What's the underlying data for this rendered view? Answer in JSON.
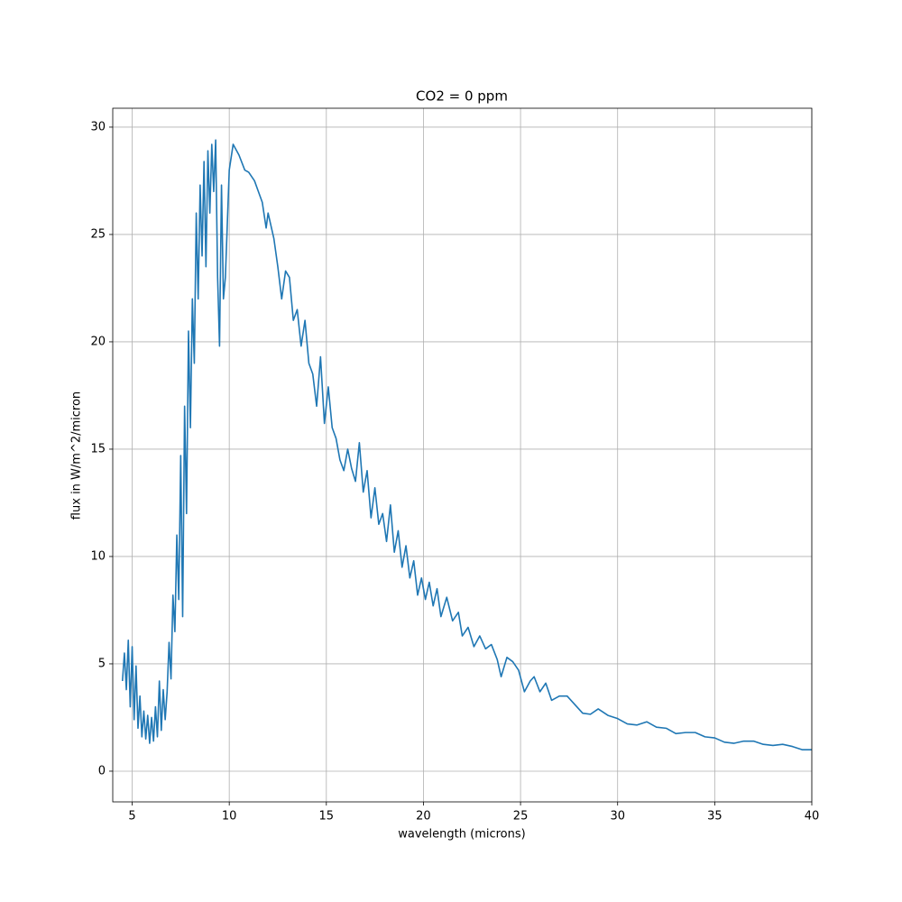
{
  "chart_data": {
    "type": "line",
    "title": "CO2 = 0 ppm",
    "x_label": "wavelength (microns)",
    "y_label": "flux in W/m^2/micron",
    "x": [
      4.5,
      4.6,
      4.7,
      4.8,
      4.9,
      5.0,
      5.1,
      5.2,
      5.3,
      5.4,
      5.5,
      5.6,
      5.7,
      5.8,
      5.9,
      6.0,
      6.1,
      6.2,
      6.3,
      6.4,
      6.5,
      6.6,
      6.7,
      6.8,
      6.9,
      7.0,
      7.1,
      7.2,
      7.3,
      7.4,
      7.5,
      7.6,
      7.7,
      7.8,
      7.9,
      8.0,
      8.1,
      8.2,
      8.3,
      8.4,
      8.5,
      8.6,
      8.7,
      8.8,
      8.9,
      9.0,
      9.1,
      9.2,
      9.3,
      9.4,
      9.5,
      9.6,
      9.7,
      9.8,
      10.0,
      10.2,
      10.5,
      10.8,
      11.0,
      11.3,
      11.5,
      11.7,
      11.9,
      12.0,
      12.3,
      12.5,
      12.7,
      12.9,
      13.1,
      13.3,
      13.5,
      13.7,
      13.9,
      14.1,
      14.3,
      14.5,
      14.7,
      14.9,
      15.1,
      15.3,
      15.5,
      15.7,
      15.9,
      16.1,
      16.3,
      16.5,
      16.7,
      16.9,
      17.1,
      17.3,
      17.5,
      17.7,
      17.9,
      18.1,
      18.3,
      18.5,
      18.7,
      18.9,
      19.1,
      19.3,
      19.5,
      19.7,
      19.9,
      20.1,
      20.3,
      20.5,
      20.7,
      20.9,
      21.2,
      21.5,
      21.8,
      22.0,
      22.3,
      22.6,
      22.9,
      23.2,
      23.5,
      23.8,
      24.0,
      24.3,
      24.6,
      24.9,
      25.2,
      25.5,
      25.7,
      26.0,
      26.3,
      26.6,
      27.0,
      27.4,
      27.8,
      28.2,
      28.6,
      29.0,
      29.5,
      30.0,
      30.5,
      31.0,
      31.5,
      32.0,
      32.5,
      33.0,
      33.5,
      34.0,
      34.5,
      35.0,
      35.5,
      36.0,
      36.5,
      37.0,
      37.5,
      38.0,
      38.5,
      39.0,
      39.5,
      40.0
    ],
    "series": [
      {
        "name": "flux",
        "color": "#1f77b4",
        "values": [
          4.2,
          5.5,
          3.8,
          6.1,
          3.0,
          5.8,
          2.4,
          4.9,
          2.0,
          3.5,
          1.6,
          2.8,
          1.5,
          2.6,
          1.3,
          2.5,
          1.4,
          3.0,
          1.6,
          4.2,
          1.9,
          3.8,
          2.4,
          3.7,
          6.0,
          4.3,
          8.2,
          6.5,
          11.0,
          8.0,
          14.7,
          7.2,
          17.0,
          12.0,
          20.5,
          16.0,
          22.0,
          19.0,
          26.0,
          22.0,
          27.3,
          24.0,
          28.4,
          23.5,
          28.9,
          26.0,
          29.2,
          27.0,
          29.4,
          23.0,
          19.8,
          27.3,
          22.0,
          23.0,
          28.0,
          29.2,
          28.7,
          28.0,
          27.9,
          27.5,
          27.0,
          26.5,
          25.3,
          26.0,
          24.8,
          23.5,
          22.0,
          23.3,
          23.0,
          21.0,
          21.5,
          19.8,
          21.0,
          19.0,
          18.5,
          17.0,
          19.3,
          16.2,
          17.9,
          16.0,
          15.5,
          14.5,
          14.0,
          15.0,
          14.1,
          13.5,
          15.3,
          13.0,
          14.0,
          11.8,
          13.2,
          11.5,
          12.0,
          10.7,
          12.4,
          10.2,
          11.2,
          9.5,
          10.5,
          9.0,
          9.8,
          8.2,
          9.0,
          8.0,
          8.8,
          7.7,
          8.5,
          7.2,
          8.1,
          7.0,
          7.4,
          6.3,
          6.7,
          5.8,
          6.3,
          5.7,
          5.9,
          5.2,
          4.4,
          5.3,
          5.1,
          4.7,
          3.7,
          4.2,
          4.4,
          3.7,
          4.1,
          3.3,
          3.5,
          3.5,
          3.1,
          2.7,
          2.65,
          2.9,
          2.6,
          2.45,
          2.2,
          2.15,
          2.3,
          2.05,
          2.0,
          1.75,
          1.8,
          1.8,
          1.6,
          1.55,
          1.35,
          1.3,
          1.4,
          1.4,
          1.25,
          1.2,
          1.25,
          1.15,
          1.0,
          1.0
        ]
      }
    ],
    "xlim": [
      4,
      40
    ],
    "xticks": [
      5,
      10,
      15,
      20,
      25,
      30,
      35,
      40
    ],
    "ylim": [
      -1.43,
      30.88
    ],
    "yticks": [
      0,
      5,
      10,
      15,
      20,
      25,
      30
    ],
    "grid": true
  }
}
